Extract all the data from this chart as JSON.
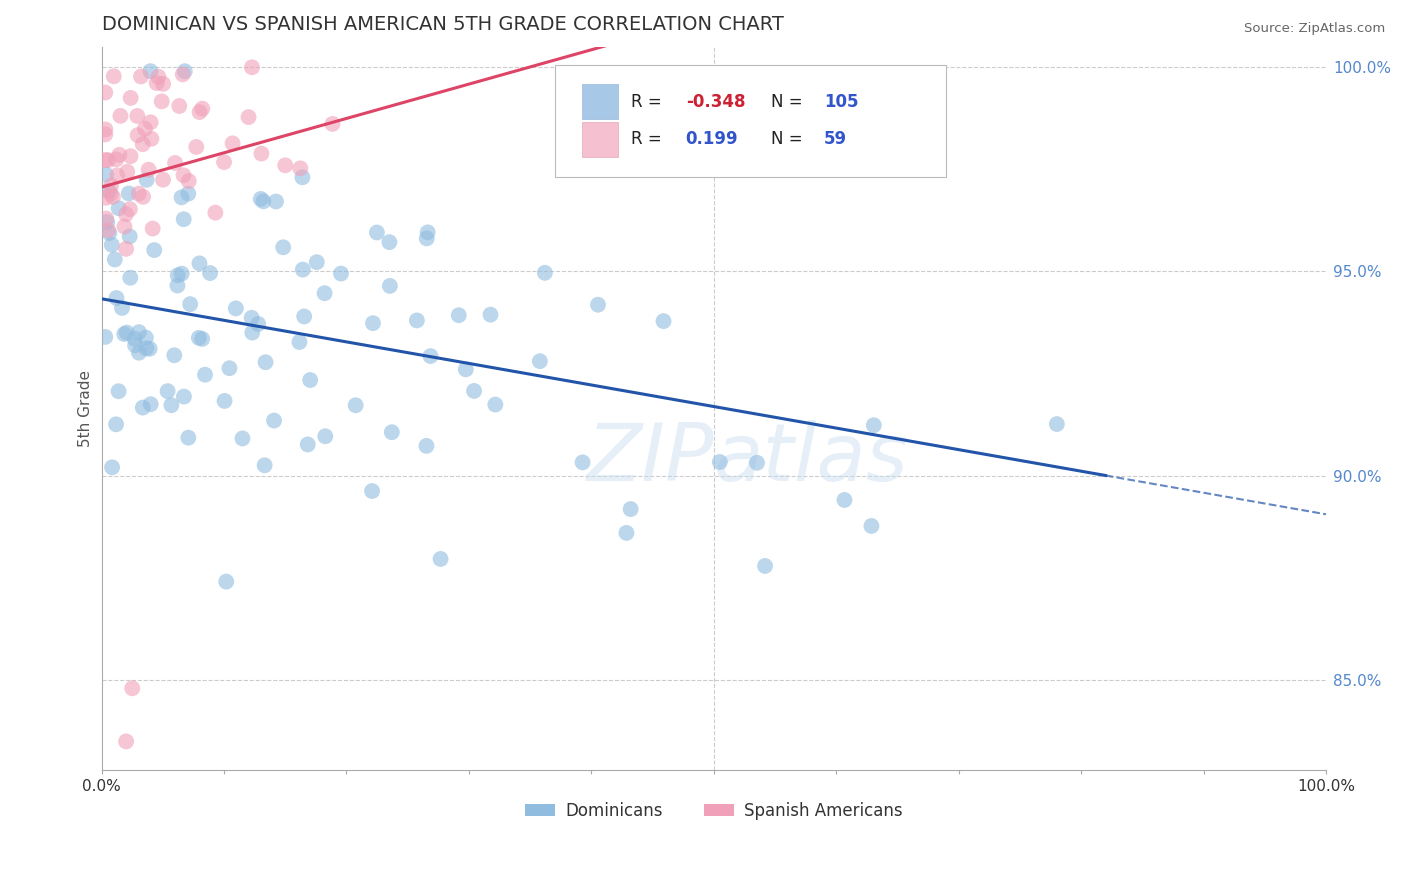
{
  "title": "DOMINICAN VS SPANISH AMERICAN 5TH GRADE CORRELATION CHART",
  "source_text": "Source: ZipAtlas.com",
  "ylabel": "5th Grade",
  "xlim": [
    0.0,
    1.0
  ],
  "ylim": [
    0.828,
    1.005
  ],
  "yticks": [
    0.85,
    0.9,
    0.95,
    1.0
  ],
  "ytick_labels": [
    "85.0%",
    "90.0%",
    "95.0%",
    "100.0%"
  ],
  "watermark": "ZIPatlas",
  "blue_color": "#90bce0",
  "pink_color": "#f0a0b8",
  "blue_line_color": "#2255aa",
  "pink_line_color": "#dd4466",
  "blue_legend_color": "#a8c8e8",
  "pink_legend_color": "#f5c0d0",
  "blue_R": -0.348,
  "blue_N": 105,
  "pink_R": 0.199,
  "pink_N": 59,
  "legend_R1": "-0.348",
  "legend_R2": "0.199",
  "legend_N1": "105",
  "legend_N2": "59",
  "dom_label": "Dominicans",
  "spa_label": "Spanish Americans"
}
